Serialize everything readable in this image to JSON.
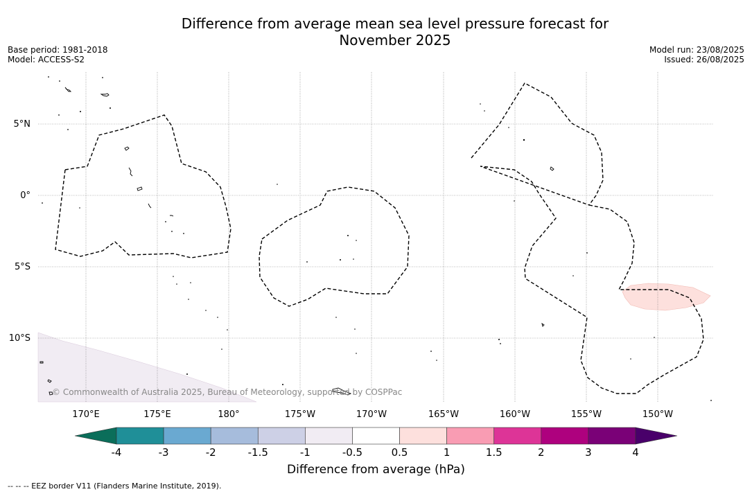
{
  "title_line1": "Difference from average mean sea level pressure forecast for",
  "title_line2": "November 2025",
  "meta_left": {
    "base_period": "Base period: 1981-2018",
    "model": "Model: ACCESS-S2"
  },
  "meta_right": {
    "model_run": "Model run: 23/08/2025",
    "issued": "Issued: 26/08/2025"
  },
  "map": {
    "lon_labels": [
      "170°E",
      "175°E",
      "180°",
      "175°W",
      "170°W",
      "165°W",
      "160°W",
      "155°W",
      "150°W"
    ],
    "lat_labels": [
      "5°N",
      "0°",
      "5°S",
      "10°S"
    ],
    "copyright": "© Commonwealth of Australia 2025, Bureau of Meteorology, supported by COSPPac"
  },
  "colorbar": {
    "ticks": [
      "-4",
      "-3",
      "-2",
      "-1.5",
      "-1",
      "-0.5",
      "0.5",
      "1",
      "1.5",
      "2",
      "3",
      "4"
    ],
    "colors": {
      "below_min": "#0b6e5a",
      "bins": [
        "#1f8f98",
        "#6aa9d1",
        "#a6bcdc",
        "#cdd0e6",
        "#f1ecf3",
        "#ffffff",
        "#fde0dd",
        "#f99cb3",
        "#dd3497",
        "#ae017e",
        "#7a0177"
      ],
      "above_max": "#49006a"
    },
    "label": "Difference from average (hPa)"
  },
  "footnote": "--  --  -- EEZ border V11 (Flanders Marine Institute, 2019)."
}
